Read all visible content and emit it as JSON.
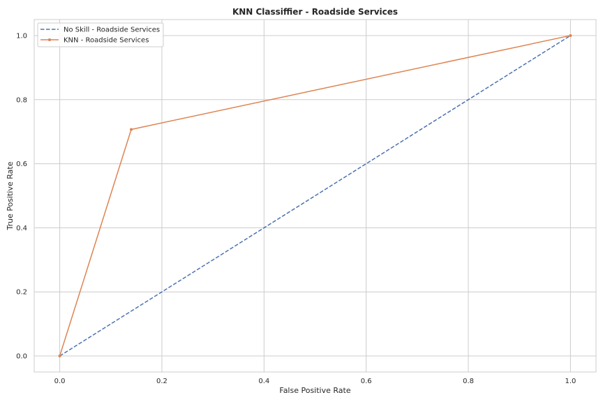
{
  "chart_data": {
    "type": "line",
    "title": "KNN Classiffier - Roadside Services",
    "xlabel": "False Positive Rate",
    "ylabel": "True Positive Rate",
    "xlim": [
      -0.05,
      1.05
    ],
    "ylim": [
      -0.05,
      1.05
    ],
    "xticks": [
      0.0,
      0.2,
      0.4,
      0.6,
      0.8,
      1.0
    ],
    "yticks": [
      0.0,
      0.2,
      0.4,
      0.6,
      0.8,
      1.0
    ],
    "tick_labels": [
      "0.0",
      "0.2",
      "0.4",
      "0.6",
      "0.8",
      "1.0"
    ],
    "grid": true,
    "legend_position": "top-left",
    "series": [
      {
        "name": "No Skill - Roadside Services",
        "style": "dashed",
        "marker": "none",
        "color": "#4c72b0",
        "x": [
          0.0,
          1.0
        ],
        "y": [
          0.0,
          1.0
        ]
      },
      {
        "name": "KNN - Roadside Services",
        "style": "solid",
        "marker": "dot",
        "color": "#dd8452",
        "x": [
          0.0,
          0.14,
          1.0
        ],
        "y": [
          0.0,
          0.707,
          1.0
        ]
      }
    ]
  }
}
